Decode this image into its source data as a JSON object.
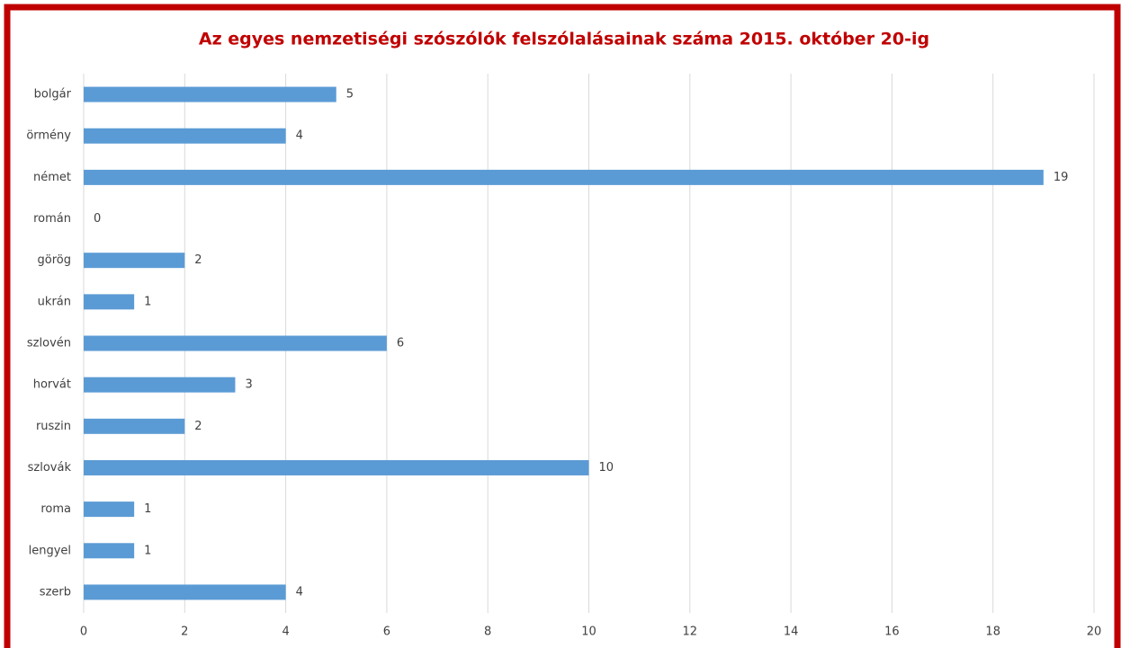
{
  "chart_data": {
    "type": "bar",
    "orientation": "horizontal",
    "title": "Az egyes nemzetiségi szószólók felszólalásainak száma 2015. október 20-ig",
    "categories": [
      "bolgár",
      "örmény",
      "német",
      "román",
      "görög",
      "ukrán",
      "szlovén",
      "horvát",
      "ruszin",
      "szlovák",
      "roma",
      "lengyel",
      "szerb"
    ],
    "values": [
      5,
      4,
      19,
      0,
      2,
      1,
      6,
      3,
      2,
      10,
      1,
      1,
      4
    ],
    "color": "#5b9bd5",
    "xlim": [
      0,
      20
    ],
    "xticks": [
      0,
      2,
      4,
      6,
      8,
      10,
      12,
      14,
      16,
      18,
      20
    ],
    "grid": true
  }
}
